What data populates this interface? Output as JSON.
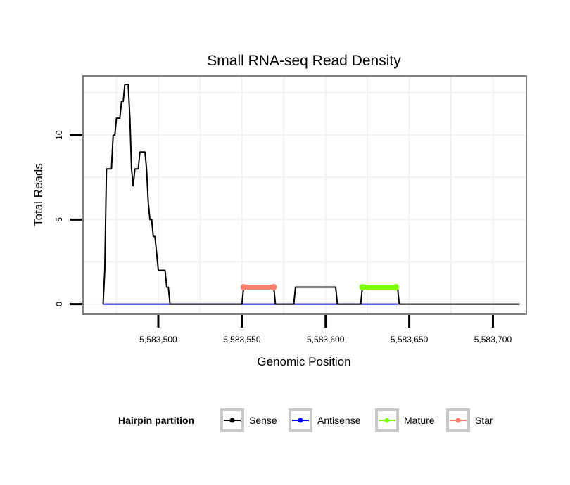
{
  "chart_data": {
    "type": "line",
    "title": "Small RNA-seq Read Density",
    "xlabel": "Genomic Position",
    "ylabel": "Total Reads",
    "xlim": [
      5583455,
      5583720
    ],
    "ylim": [
      -0.6,
      13.5
    ],
    "x_ticks": [
      5583500,
      5583550,
      5583600,
      5583650,
      5583700
    ],
    "x_tick_labels": [
      "5,583,500",
      "5,583,550",
      "5,583,600",
      "5,583,650",
      "5,583,700"
    ],
    "y_ticks": [
      0,
      5,
      10
    ],
    "y_tick_labels": [
      "0",
      "5",
      "10"
    ],
    "grid": true,
    "legend": {
      "title": "Hairpin partition",
      "placement": "bottom",
      "entries": [
        {
          "name": "Sense",
          "color": "#000000"
        },
        {
          "name": "Antisense",
          "color": "#0000ff"
        },
        {
          "name": "Mature",
          "color": "#7fff00"
        },
        {
          "name": "Star",
          "color": "#fa8072"
        }
      ]
    },
    "series": [
      {
        "name": "Sense",
        "color": "#000000",
        "points": [
          [
            5583467,
            0
          ],
          [
            5583468,
            2
          ],
          [
            5583469,
            8
          ],
          [
            5583470,
            8
          ],
          [
            5583471,
            8
          ],
          [
            5583472,
            8
          ],
          [
            5583473,
            10
          ],
          [
            5583474,
            10
          ],
          [
            5583475,
            11
          ],
          [
            5583476,
            11
          ],
          [
            5583477,
            11
          ],
          [
            5583478,
            12
          ],
          [
            5583479,
            12
          ],
          [
            5583480,
            13
          ],
          [
            5583481,
            13
          ],
          [
            5583482,
            13
          ],
          [
            5583483,
            11
          ],
          [
            5583484,
            8
          ],
          [
            5583485,
            7
          ],
          [
            5583486,
            8
          ],
          [
            5583487,
            8
          ],
          [
            5583488,
            8
          ],
          [
            5583489,
            9
          ],
          [
            5583490,
            9
          ],
          [
            5583491,
            9
          ],
          [
            5583492,
            9
          ],
          [
            5583493,
            8
          ],
          [
            5583494,
            6
          ],
          [
            5583495,
            5
          ],
          [
            5583496,
            5
          ],
          [
            5583497,
            4
          ],
          [
            5583498,
            4
          ],
          [
            5583499,
            3
          ],
          [
            5583500,
            2
          ],
          [
            5583501,
            2
          ],
          [
            5583502,
            2
          ],
          [
            5583503,
            2
          ],
          [
            5583504,
            2
          ],
          [
            5583505,
            1
          ],
          [
            5583506,
            1
          ],
          [
            5583507,
            0
          ],
          [
            5583520,
            0
          ],
          [
            5583530,
            0
          ],
          [
            5583540,
            0
          ],
          [
            5583550,
            0
          ],
          [
            5583551,
            1
          ],
          [
            5583569,
            1
          ],
          [
            5583570,
            0
          ],
          [
            5583581,
            0
          ],
          [
            5583582,
            1
          ],
          [
            5583606,
            1
          ],
          [
            5583607,
            0
          ],
          [
            5583621,
            0
          ],
          [
            5583622,
            1
          ],
          [
            5583643,
            1
          ],
          [
            5583644,
            0
          ],
          [
            5583716,
            0
          ]
        ]
      },
      {
        "name": "Antisense",
        "color": "#0000ff",
        "points": [
          [
            5583467,
            0
          ],
          [
            5583643,
            0
          ]
        ]
      },
      {
        "name": "Mature",
        "color": "#7fff00",
        "points": [
          [
            5583622,
            1
          ],
          [
            5583642,
            1
          ]
        ]
      },
      {
        "name": "Star",
        "color": "#fa8072",
        "points": [
          [
            5583551,
            1
          ],
          [
            5583569,
            1
          ]
        ]
      }
    ]
  }
}
